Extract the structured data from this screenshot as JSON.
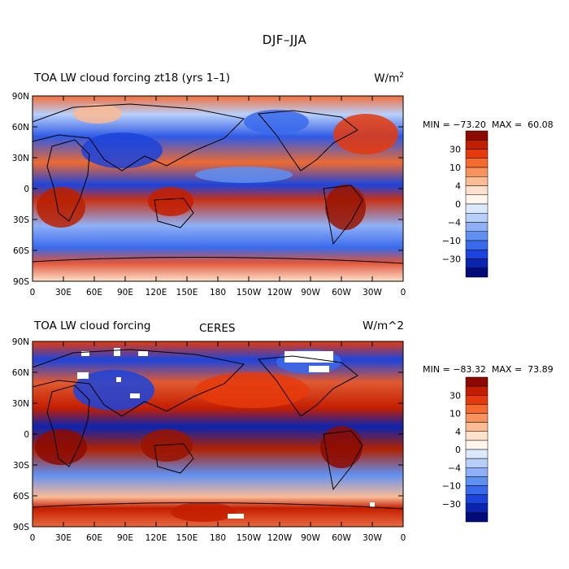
{
  "figure_title": "DJF–JJA",
  "lat_ticks": [
    "90N",
    "60N",
    "30N",
    "0",
    "30S",
    "60S",
    "90S"
  ],
  "lon_ticks": [
    "0",
    "30E",
    "60E",
    "90E",
    "120E",
    "150E",
    "180",
    "150W",
    "120W",
    "90W",
    "60W",
    "30W",
    "0"
  ],
  "colorbar_labels": [
    "30",
    "10",
    "4",
    "0",
    "−4",
    "−10",
    "−30"
  ],
  "colorbar_colors": [
    "#8c0a00",
    "#c41e00",
    "#e63a0c",
    "#f56a2e",
    "#f8935d",
    "#fabb95",
    "#fde1cc",
    "#fef6ec",
    "#dce8fb",
    "#b8cffa",
    "#8fb0f6",
    "#6090f1",
    "#3a6aec",
    "#1c44dc",
    "#0b24b0",
    "#030a7a"
  ],
  "panels": [
    {
      "title": "TOA LW cloud forcing zt18 (yrs 1–1)",
      "subtitle": "",
      "units": "W/m",
      "units_sup": "2",
      "min_label": "MIN =",
      "min_value": "−73.20",
      "max_label": "MAX =",
      "max_value": "60.08"
    },
    {
      "title": "TOA LW cloud forcing",
      "subtitle": "CERES",
      "units": "W/m^2",
      "units_sup": "",
      "min_label": "MIN =",
      "min_value": "−83.32",
      "max_label": "MAX =",
      "max_value": "73.89"
    }
  ]
}
